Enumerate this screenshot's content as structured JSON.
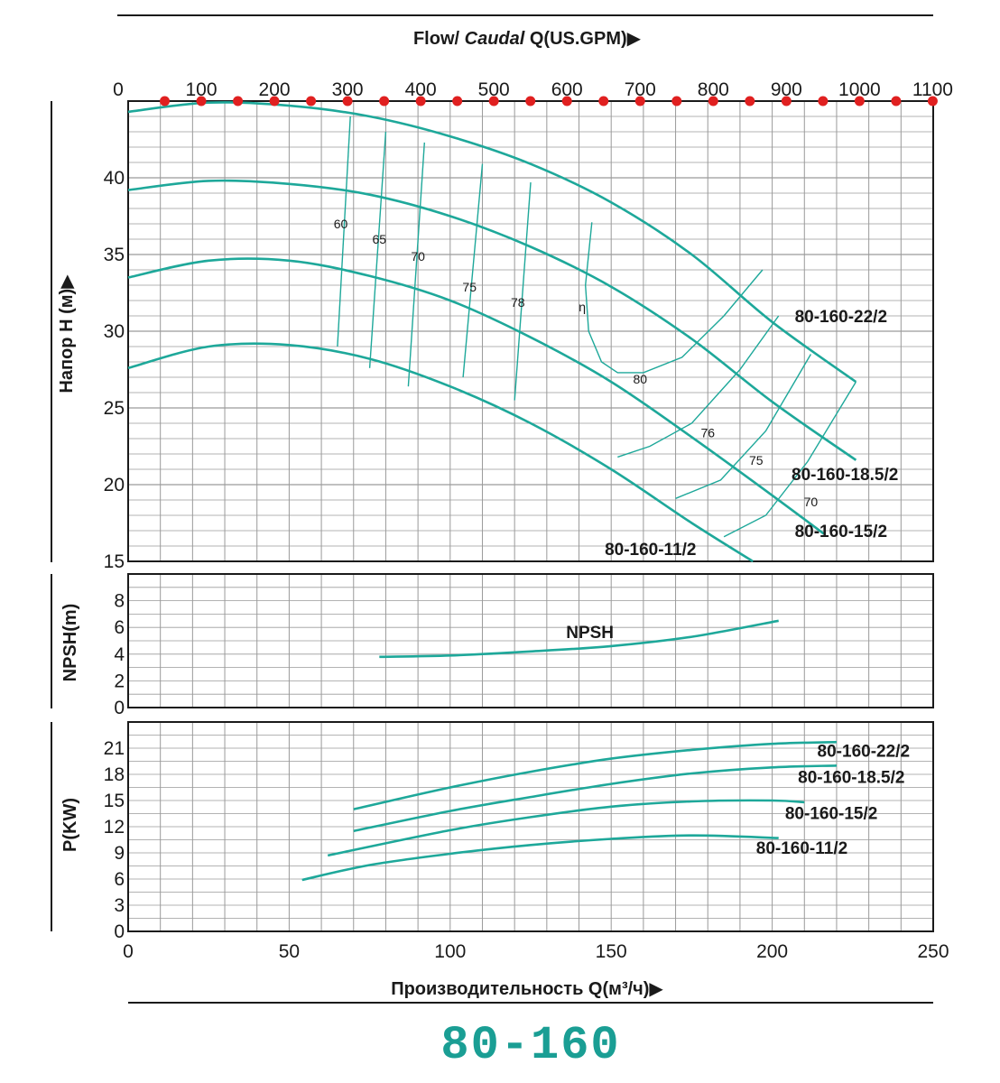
{
  "model_title": "80-160",
  "top_axis": {
    "title_prefix": "Flow/ ",
    "title_italic": "Caudal",
    "title_suffix": " Q(US.GPM)▶",
    "ticks": [
      "0",
      "100",
      "200",
      "300",
      "400",
      "500",
      "600",
      "700",
      "800",
      "900",
      "1000",
      "1100"
    ]
  },
  "bottom_axis": {
    "title": "Производительность Q(м³/ч)▶",
    "ticks": [
      "0",
      "50",
      "100",
      "150",
      "200",
      "250"
    ]
  },
  "colors": {
    "curve": "#1ea89a",
    "grid": "#9a9a9a",
    "dot": "#e02020",
    "model": "#1a9e94"
  },
  "chart_data": [
    {
      "type": "line",
      "id": "head",
      "ylabel": "Напор H (м)▶",
      "xlim": [
        0,
        250
      ],
      "ylim": [
        15,
        45
      ],
      "y_ticks": [
        "15",
        "20",
        "25",
        "30",
        "35",
        "40"
      ],
      "x": "Q (м³/ч)",
      "series": [
        {
          "name": "80-160-22/2",
          "points": [
            [
              0,
              44.3
            ],
            [
              25,
              44.9
            ],
            [
              50,
              44.7
            ],
            [
              75,
              44.0
            ],
            [
              100,
              42.7
            ],
            [
              125,
              40.9
            ],
            [
              150,
              38.4
            ],
            [
              175,
              35.0
            ],
            [
              200,
              30.6
            ],
            [
              226,
              26.7
            ]
          ]
        },
        {
          "name": "80-160-18.5/2",
          "points": [
            [
              0,
              39.2
            ],
            [
              25,
              39.8
            ],
            [
              50,
              39.6
            ],
            [
              75,
              38.9
            ],
            [
              100,
              37.5
            ],
            [
              125,
              35.5
            ],
            [
              150,
              32.9
            ],
            [
              175,
              29.5
            ],
            [
              200,
              25.4
            ],
            [
              226,
              21.6
            ]
          ]
        },
        {
          "name": "80-160-15/2",
          "points": [
            [
              0,
              33.5
            ],
            [
              25,
              34.6
            ],
            [
              50,
              34.6
            ],
            [
              75,
              33.6
            ],
            [
              100,
              32.0
            ],
            [
              125,
              29.6
            ],
            [
              150,
              26.7
            ],
            [
              175,
              23.1
            ],
            [
              200,
              19.3
            ],
            [
              216,
              16.8
            ]
          ]
        },
        {
          "name": "80-160-11/2",
          "points": [
            [
              0,
              27.6
            ],
            [
              25,
              29.0
            ],
            [
              50,
              29.1
            ],
            [
              75,
              28.2
            ],
            [
              100,
              26.4
            ],
            [
              125,
              24.0
            ],
            [
              150,
              21.0
            ],
            [
              175,
              17.5
            ],
            [
              194,
              15.0
            ]
          ]
        }
      ],
      "efficiency_labels": [
        {
          "label": "60",
          "q": 66,
          "h": 36.7
        },
        {
          "label": "65",
          "q": 78,
          "h": 35.7
        },
        {
          "label": "70",
          "q": 90,
          "h": 34.6
        },
        {
          "label": "75",
          "q": 106,
          "h": 32.6
        },
        {
          "label": "78",
          "q": 121,
          "h": 31.6
        },
        {
          "label": "η",
          "q": 141,
          "h": 31.3
        },
        {
          "label": "80",
          "q": 159,
          "h": 26.6
        },
        {
          "label": "76",
          "q": 180,
          "h": 23.1
        },
        {
          "label": "75",
          "q": 195,
          "h": 21.3
        },
        {
          "label": "70",
          "q": 212,
          "h": 18.6
        }
      ],
      "efficiency_lines": [
        {
          "points": [
            [
              65,
              29.0
            ],
            [
              69,
              44.0
            ]
          ]
        },
        {
          "points": [
            [
              75,
              27.6
            ],
            [
              80,
              43.0
            ]
          ]
        },
        {
          "points": [
            [
              87,
              26.4
            ],
            [
              92,
              42.3
            ]
          ]
        },
        {
          "points": [
            [
              104,
              27.0
            ],
            [
              110,
              40.9
            ]
          ]
        },
        {
          "points": [
            [
              120,
              25.5
            ],
            [
              125,
              39.7
            ]
          ]
        },
        {
          "points": [
            [
              144,
              37.1
            ],
            [
              142,
              33.0
            ],
            [
              143,
              30.0
            ],
            [
              147,
              28.0
            ],
            [
              152,
              27.3
            ],
            [
              160,
              27.3
            ],
            [
              172,
              28.3
            ],
            [
              185,
              31.0
            ],
            [
              197,
              34.0
            ]
          ]
        },
        {
          "points": [
            [
              152,
              21.8
            ],
            [
              162,
              22.5
            ],
            [
              175,
              24.0
            ],
            [
              190,
              27.5
            ],
            [
              202,
              31.0
            ]
          ]
        },
        {
          "points": [
            [
              170,
              19.1
            ],
            [
              184,
              20.3
            ],
            [
              198,
              23.5
            ],
            [
              212,
              28.5
            ]
          ]
        },
        {
          "points": [
            [
              185,
              16.6
            ],
            [
              198,
              18.0
            ],
            [
              211,
              21.5
            ],
            [
              226,
              26.7
            ]
          ]
        }
      ],
      "curve_labels": [
        {
          "name": "80-160-22/2",
          "q": 207,
          "h": 30.6
        },
        {
          "name": "80-160-18.5/2",
          "q": 206,
          "h": 20.3
        },
        {
          "name": "80-160-15/2",
          "q": 207,
          "h": 16.6
        },
        {
          "name": "80-160-11/2",
          "q": 148,
          "h": 15.4
        }
      ]
    },
    {
      "type": "line",
      "id": "npsh",
      "ylabel": "NPSH(m)",
      "xlim": [
        0,
        250
      ],
      "ylim": [
        0,
        10
      ],
      "y_ticks": [
        "0",
        "2",
        "4",
        "6",
        "8"
      ],
      "series": [
        {
          "name": "NPSH",
          "points": [
            [
              78,
              3.8
            ],
            [
              100,
              3.9
            ],
            [
              125,
              4.2
            ],
            [
              150,
              4.6
            ],
            [
              175,
              5.3
            ],
            [
              202,
              6.5
            ]
          ]
        }
      ],
      "curve_labels": [
        {
          "name": "NPSH",
          "q": 136,
          "h": 5.2
        }
      ]
    },
    {
      "type": "line",
      "id": "power",
      "ylabel": "P(KW)",
      "xlim": [
        0,
        250
      ],
      "ylim": [
        0,
        24
      ],
      "y_ticks": [
        "0",
        "3",
        "6",
        "9",
        "12",
        "15",
        "18",
        "21"
      ],
      "series": [
        {
          "name": "80-160-22/2",
          "points": [
            [
              70,
              14.0
            ],
            [
              100,
              16.5
            ],
            [
              125,
              18.3
            ],
            [
              150,
              19.8
            ],
            [
              175,
              20.8
            ],
            [
              200,
              21.5
            ],
            [
              220,
              21.7
            ]
          ]
        },
        {
          "name": "80-160-18.5/2",
          "points": [
            [
              70,
              11.5
            ],
            [
              100,
              13.8
            ],
            [
              125,
              15.4
            ],
            [
              150,
              16.9
            ],
            [
              175,
              18.1
            ],
            [
              200,
              18.8
            ],
            [
              220,
              19.0
            ]
          ]
        },
        {
          "name": "80-160-15/2",
          "points": [
            [
              62,
              8.7
            ],
            [
              100,
              11.6
            ],
            [
              125,
              13.1
            ],
            [
              150,
              14.3
            ],
            [
              175,
              14.9
            ],
            [
              200,
              15.0
            ],
            [
              210,
              14.8
            ]
          ]
        },
        {
          "name": "80-160-11/2",
          "points": [
            [
              54,
              5.9
            ],
            [
              75,
              7.6
            ],
            [
              100,
              8.9
            ],
            [
              125,
              9.9
            ],
            [
              150,
              10.6
            ],
            [
              175,
              11.0
            ],
            [
              202,
              10.7
            ]
          ]
        }
      ],
      "curve_labels": [
        {
          "name": "80-160-22/2",
          "q": 214,
          "h": 20.0
        },
        {
          "name": "80-160-18.5/2",
          "q": 208,
          "h": 17.0
        },
        {
          "name": "80-160-15/2",
          "q": 204,
          "h": 12.9
        },
        {
          "name": "80-160-11/2",
          "q": 195,
          "h": 8.9
        }
      ]
    }
  ]
}
